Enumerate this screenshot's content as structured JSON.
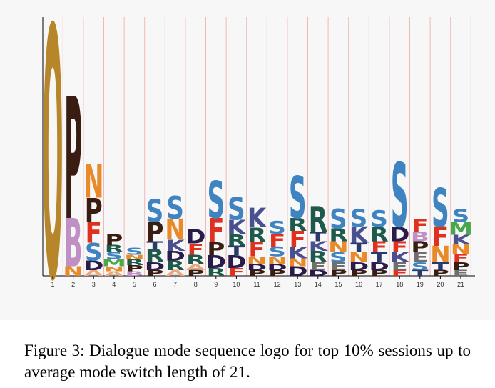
{
  "caption": "Figure 3: Dialogue mode sequence logo for top 10% sessions up to average mode switch length of 21.",
  "colors": {
    "O": "#b8862a",
    "P": "#3a1d12",
    "B": "#c08fc4",
    "N": "#e88a2a",
    "F": "#e0301e",
    "S": "#3f84c0",
    "R": "#1e5a4a",
    "D": "#2a1c4a",
    "K": "#4a4f8f",
    "T": "#2a3a6a",
    "M": "#4aa84a",
    "A": "#e8a87c",
    "E": "#6f6f6f",
    "I": "#9a4a8a",
    "C": "#333333"
  },
  "chart_data": {
    "type": "sequence-logo",
    "title": "",
    "xlabel": "",
    "ylabel": "",
    "ylim": [
      0,
      1
    ],
    "positions": [
      {
        "x": 1,
        "stack": [
          [
            "O",
            0.78
          ]
        ]
      },
      {
        "x": 2,
        "stack": [
          [
            "N",
            0.03
          ],
          [
            "B",
            0.15
          ],
          [
            "P",
            0.38
          ]
        ]
      },
      {
        "x": 3,
        "stack": [
          [
            "A",
            0.018
          ],
          [
            "D",
            0.03
          ],
          [
            "S",
            0.055
          ],
          [
            "F",
            0.065
          ],
          [
            "P",
            0.075
          ],
          [
            "N",
            0.105
          ]
        ]
      },
      {
        "x": 4,
        "stack": [
          [
            "A",
            0.015
          ],
          [
            "N",
            0.015
          ],
          [
            "M",
            0.022
          ],
          [
            "S",
            0.022
          ],
          [
            "R",
            0.022
          ],
          [
            "P",
            0.035
          ]
        ]
      },
      {
        "x": 5,
        "stack": [
          [
            "B",
            0.015
          ],
          [
            "P",
            0.018
          ],
          [
            "R",
            0.018
          ],
          [
            "N",
            0.015
          ],
          [
            "S",
            0.022
          ]
        ]
      },
      {
        "x": 6,
        "stack": [
          [
            "P",
            0.018
          ],
          [
            "D",
            0.025
          ],
          [
            "R",
            0.04
          ],
          [
            "T",
            0.025
          ],
          [
            "P",
            0.06
          ],
          [
            "S",
            0.07
          ]
        ]
      },
      {
        "x": 7,
        "stack": [
          [
            "A",
            0.018
          ],
          [
            "R",
            0.03
          ],
          [
            "D",
            0.03
          ],
          [
            "K",
            0.035
          ],
          [
            "N",
            0.065
          ],
          [
            "S",
            0.07
          ]
        ]
      },
      {
        "x": 8,
        "stack": [
          [
            "P",
            0.018
          ],
          [
            "A",
            0.018
          ],
          [
            "R",
            0.03
          ],
          [
            "F",
            0.035
          ],
          [
            "D",
            0.045
          ]
        ]
      },
      {
        "x": 9,
        "stack": [
          [
            "R",
            0.025
          ],
          [
            "D",
            0.04
          ],
          [
            "P",
            0.04
          ],
          [
            "F",
            0.075
          ],
          [
            "S",
            0.115
          ]
        ]
      },
      {
        "x": 10,
        "stack": [
          [
            "F",
            0.025
          ],
          [
            "D",
            0.04
          ],
          [
            "T",
            0.03
          ],
          [
            "R",
            0.035
          ],
          [
            "K",
            0.045
          ],
          [
            "S",
            0.07
          ]
        ]
      },
      {
        "x": 11,
        "stack": [
          [
            "P",
            0.018
          ],
          [
            "D",
            0.018
          ],
          [
            "N",
            0.025
          ],
          [
            "F",
            0.045
          ],
          [
            "R",
            0.045
          ],
          [
            "K",
            0.06
          ]
        ]
      },
      {
        "x": 12,
        "stack": [
          [
            "P",
            0.018
          ],
          [
            "D",
            0.018
          ],
          [
            "N",
            0.025
          ],
          [
            "S",
            0.03
          ],
          [
            "F",
            0.04
          ],
          [
            "S",
            0.04
          ]
        ]
      },
      {
        "x": 13,
        "stack": [
          [
            "D",
            0.03
          ],
          [
            "N",
            0.025
          ],
          [
            "K",
            0.035
          ],
          [
            "F",
            0.05
          ],
          [
            "R",
            0.04
          ],
          [
            "S",
            0.13
          ]
        ]
      },
      {
        "x": 14,
        "stack": [
          [
            "D",
            0.018
          ],
          [
            "E",
            0.025
          ],
          [
            "R",
            0.035
          ],
          [
            "K",
            0.03
          ],
          [
            "T",
            0.03
          ],
          [
            "R",
            0.08
          ]
        ]
      },
      {
        "x": 15,
        "stack": [
          [
            "P",
            0.018
          ],
          [
            "E",
            0.025
          ],
          [
            "S",
            0.03
          ],
          [
            "N",
            0.035
          ],
          [
            "R",
            0.04
          ],
          [
            "S",
            0.06
          ]
        ]
      },
      {
        "x": 16,
        "stack": [
          [
            "P",
            0.018
          ],
          [
            "D",
            0.025
          ],
          [
            "N",
            0.03
          ],
          [
            "T",
            0.03
          ],
          [
            "K",
            0.05
          ],
          [
            "S",
            0.055
          ]
        ]
      },
      {
        "x": 17,
        "stack": [
          [
            "P",
            0.018
          ],
          [
            "D",
            0.025
          ],
          [
            "T",
            0.03
          ],
          [
            "F",
            0.035
          ],
          [
            "R",
            0.045
          ],
          [
            "S",
            0.05
          ]
        ]
      },
      {
        "x": 18,
        "stack": [
          [
            "F",
            0.018
          ],
          [
            "E",
            0.025
          ],
          [
            "K",
            0.03
          ],
          [
            "F",
            0.035
          ],
          [
            "D",
            0.045
          ],
          [
            "S",
            0.2
          ]
        ]
      },
      {
        "x": 19,
        "stack": [
          [
            "T",
            0.018
          ],
          [
            "S",
            0.025
          ],
          [
            "E",
            0.03
          ],
          [
            "P",
            0.035
          ],
          [
            "B",
            0.03
          ],
          [
            "F",
            0.04
          ]
        ]
      },
      {
        "x": 20,
        "stack": [
          [
            "P",
            0.018
          ],
          [
            "T",
            0.025
          ],
          [
            "N",
            0.05
          ],
          [
            "F",
            0.06
          ],
          [
            "S",
            0.12
          ]
        ]
      },
      {
        "x": 21,
        "stack": [
          [
            "E",
            0.018
          ],
          [
            "P",
            0.025
          ],
          [
            "F",
            0.025
          ],
          [
            "N",
            0.03
          ],
          [
            "K",
            0.03
          ],
          [
            "M",
            0.04
          ],
          [
            "S",
            0.04
          ]
        ]
      }
    ]
  }
}
